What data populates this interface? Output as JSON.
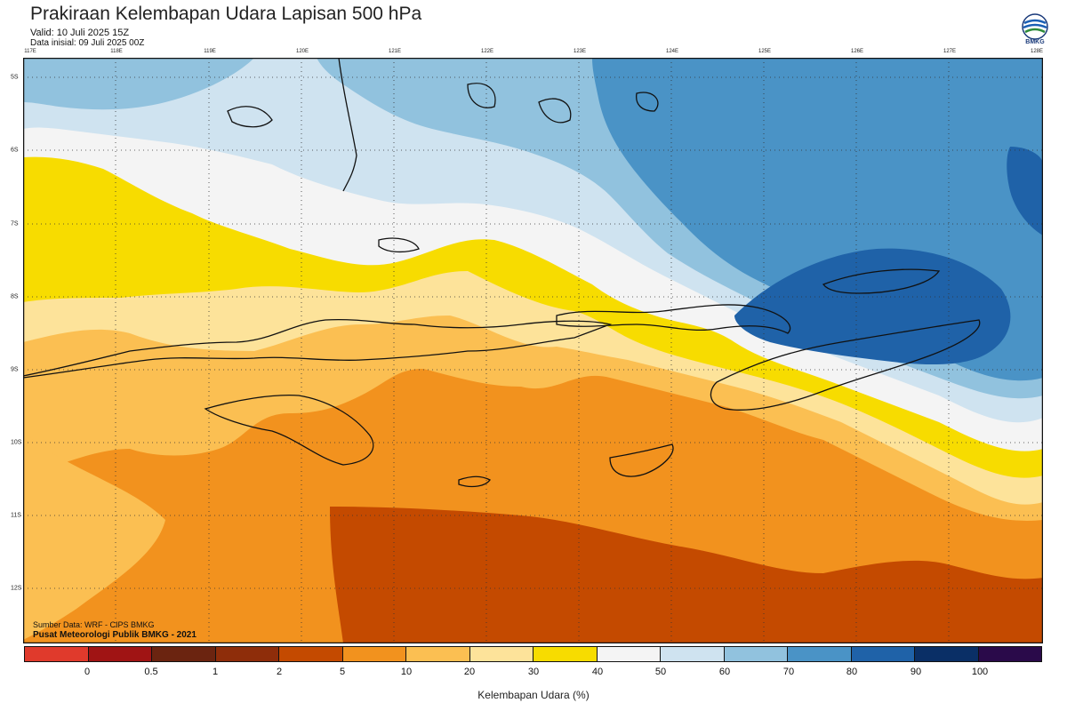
{
  "header": {
    "title": "Prakiraan Kelembapan Udara Lapisan 500 hPa",
    "valid": "Valid: 10 Juli 2025 15Z",
    "initial": "Data inisial: 09 Juli 2025 00Z",
    "logo_text": "BMKG"
  },
  "axes": {
    "lon_labels": [
      "117E",
      "118E",
      "119E",
      "120E",
      "121E",
      "122E",
      "123E",
      "124E",
      "125E",
      "126E",
      "127E",
      "128E"
    ],
    "lat_labels": [
      "5S",
      "6S",
      "7S",
      "8S",
      "9S",
      "10S",
      "11S",
      "12S"
    ]
  },
  "credits": {
    "source": "Sumber Data: WRF - CIPS BMKG",
    "center": "Pusat Meteorologi Publik BMKG - 2021"
  },
  "colorbar": {
    "label": "Kelembapan Udara (%)",
    "colors": [
      "#e03a2c",
      "#a01414",
      "#6b2410",
      "#8e2d0a",
      "#c44a00",
      "#f2921e",
      "#fbbf52",
      "#fde39a",
      "#f7dc00",
      "#f4f4f4",
      "#cfe3f0",
      "#91c2de",
      "#4a93c6",
      "#1f62a8",
      "#0a2f66",
      "#2a0a4a"
    ],
    "ticks": [
      "0",
      "0.5",
      "1",
      "2",
      "5",
      "10",
      "20",
      "30",
      "40",
      "50",
      "60",
      "70",
      "80",
      "90",
      "100"
    ]
  },
  "map_colors": {
    "c_5_10": "#f2921e",
    "c_2_5": "#c44a00",
    "c_10_20": "#fbbf52",
    "c_20_30": "#fde39a",
    "c_30_40": "#f7dc00",
    "c_40_50": "#f4f4f4",
    "c_50_60": "#cfe3f0",
    "c_60_70": "#91c2de",
    "c_70_80": "#4a93c6",
    "c_80_90": "#1f62a8"
  }
}
